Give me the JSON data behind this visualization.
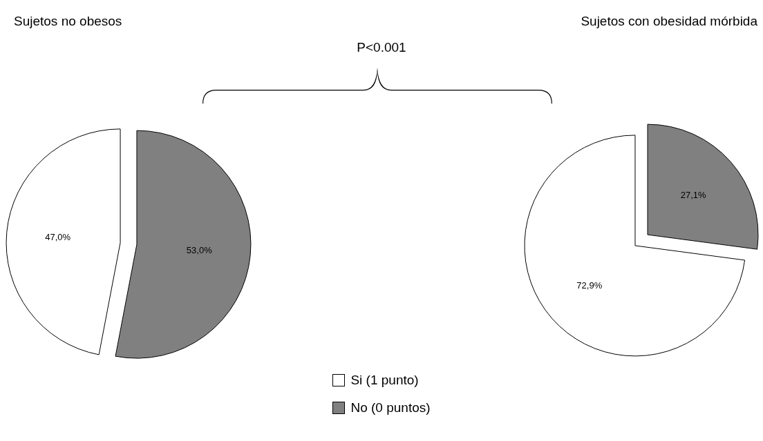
{
  "chart_data": [
    {
      "type": "pie",
      "title": "Sujetos no obesos",
      "categories": [
        "Si (1 punto)",
        "No (0 puntos)"
      ],
      "values": [
        47.0,
        53.0
      ],
      "colors": [
        "#ffffff",
        "#808080"
      ],
      "value_labels": [
        "47,0%",
        "53,0%"
      ],
      "legend": "bottom",
      "annotations": [
        "P<0.001"
      ]
    },
    {
      "type": "pie",
      "title": "Sujetos con obesidad mórbida",
      "categories": [
        null,
        null
      ],
      "values": [
        72.9,
        27.1
      ],
      "colors": [
        "#ffffff",
        "#808080"
      ],
      "value_labels": [
        "72,9%",
        "27,1%"
      ]
    }
  ]
}
